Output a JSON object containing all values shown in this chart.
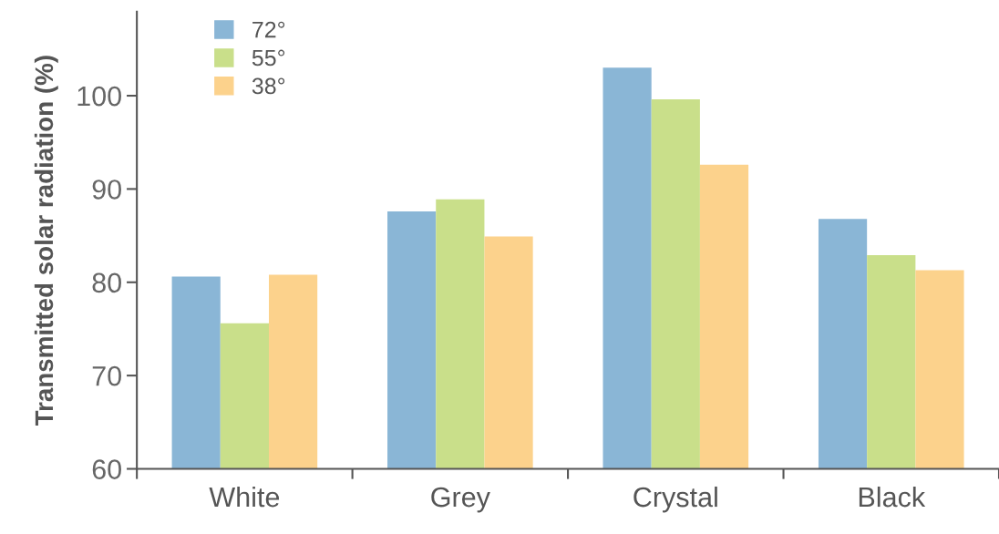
{
  "chart_data": {
    "type": "bar",
    "ylabel": "Transmitted solar radiation (%)",
    "categories": [
      "White",
      "Grey",
      "Crystal",
      "Black"
    ],
    "series": [
      {
        "name": "72°",
        "color": "#8ab6d6",
        "values": [
          80.6,
          87.6,
          103.0,
          86.8
        ]
      },
      {
        "name": "55°",
        "color": "#c9df8a",
        "values": [
          75.6,
          88.9,
          99.6,
          82.9
        ]
      },
      {
        "name": "38°",
        "color": "#fcd28c",
        "values": [
          80.8,
          84.9,
          92.6,
          81.3
        ]
      }
    ],
    "ylim": [
      60,
      109
    ],
    "yticks": [
      60,
      70,
      80,
      90,
      100
    ],
    "grid": false,
    "legend": "top left"
  }
}
